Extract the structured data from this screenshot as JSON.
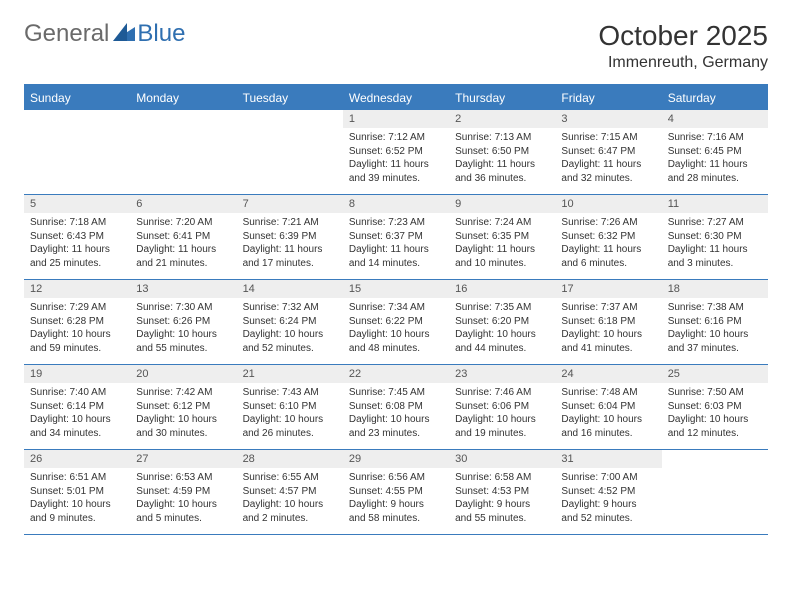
{
  "logo": {
    "general": "General",
    "blue": "Blue"
  },
  "title": "October 2025",
  "location": "Immenreuth, Germany",
  "colors": {
    "header_bg": "#3a7bbd",
    "header_text": "#ffffff",
    "daynum_bg": "#eeeeee",
    "border": "#3a7bbd",
    "logo_gray": "#6a6a6a",
    "logo_blue": "#2f6fb0"
  },
  "weekdays": [
    "Sunday",
    "Monday",
    "Tuesday",
    "Wednesday",
    "Thursday",
    "Friday",
    "Saturday"
  ],
  "weeks": [
    [
      {
        "empty": true
      },
      {
        "empty": true
      },
      {
        "empty": true
      },
      {
        "num": "1",
        "sunrise": "Sunrise: 7:12 AM",
        "sunset": "Sunset: 6:52 PM",
        "daylight": "Daylight: 11 hours and 39 minutes."
      },
      {
        "num": "2",
        "sunrise": "Sunrise: 7:13 AM",
        "sunset": "Sunset: 6:50 PM",
        "daylight": "Daylight: 11 hours and 36 minutes."
      },
      {
        "num": "3",
        "sunrise": "Sunrise: 7:15 AM",
        "sunset": "Sunset: 6:47 PM",
        "daylight": "Daylight: 11 hours and 32 minutes."
      },
      {
        "num": "4",
        "sunrise": "Sunrise: 7:16 AM",
        "sunset": "Sunset: 6:45 PM",
        "daylight": "Daylight: 11 hours and 28 minutes."
      }
    ],
    [
      {
        "num": "5",
        "sunrise": "Sunrise: 7:18 AM",
        "sunset": "Sunset: 6:43 PM",
        "daylight": "Daylight: 11 hours and 25 minutes."
      },
      {
        "num": "6",
        "sunrise": "Sunrise: 7:20 AM",
        "sunset": "Sunset: 6:41 PM",
        "daylight": "Daylight: 11 hours and 21 minutes."
      },
      {
        "num": "7",
        "sunrise": "Sunrise: 7:21 AM",
        "sunset": "Sunset: 6:39 PM",
        "daylight": "Daylight: 11 hours and 17 minutes."
      },
      {
        "num": "8",
        "sunrise": "Sunrise: 7:23 AM",
        "sunset": "Sunset: 6:37 PM",
        "daylight": "Daylight: 11 hours and 14 minutes."
      },
      {
        "num": "9",
        "sunrise": "Sunrise: 7:24 AM",
        "sunset": "Sunset: 6:35 PM",
        "daylight": "Daylight: 11 hours and 10 minutes."
      },
      {
        "num": "10",
        "sunrise": "Sunrise: 7:26 AM",
        "sunset": "Sunset: 6:32 PM",
        "daylight": "Daylight: 11 hours and 6 minutes."
      },
      {
        "num": "11",
        "sunrise": "Sunrise: 7:27 AM",
        "sunset": "Sunset: 6:30 PM",
        "daylight": "Daylight: 11 hours and 3 minutes."
      }
    ],
    [
      {
        "num": "12",
        "sunrise": "Sunrise: 7:29 AM",
        "sunset": "Sunset: 6:28 PM",
        "daylight": "Daylight: 10 hours and 59 minutes."
      },
      {
        "num": "13",
        "sunrise": "Sunrise: 7:30 AM",
        "sunset": "Sunset: 6:26 PM",
        "daylight": "Daylight: 10 hours and 55 minutes."
      },
      {
        "num": "14",
        "sunrise": "Sunrise: 7:32 AM",
        "sunset": "Sunset: 6:24 PM",
        "daylight": "Daylight: 10 hours and 52 minutes."
      },
      {
        "num": "15",
        "sunrise": "Sunrise: 7:34 AM",
        "sunset": "Sunset: 6:22 PM",
        "daylight": "Daylight: 10 hours and 48 minutes."
      },
      {
        "num": "16",
        "sunrise": "Sunrise: 7:35 AM",
        "sunset": "Sunset: 6:20 PM",
        "daylight": "Daylight: 10 hours and 44 minutes."
      },
      {
        "num": "17",
        "sunrise": "Sunrise: 7:37 AM",
        "sunset": "Sunset: 6:18 PM",
        "daylight": "Daylight: 10 hours and 41 minutes."
      },
      {
        "num": "18",
        "sunrise": "Sunrise: 7:38 AM",
        "sunset": "Sunset: 6:16 PM",
        "daylight": "Daylight: 10 hours and 37 minutes."
      }
    ],
    [
      {
        "num": "19",
        "sunrise": "Sunrise: 7:40 AM",
        "sunset": "Sunset: 6:14 PM",
        "daylight": "Daylight: 10 hours and 34 minutes."
      },
      {
        "num": "20",
        "sunrise": "Sunrise: 7:42 AM",
        "sunset": "Sunset: 6:12 PM",
        "daylight": "Daylight: 10 hours and 30 minutes."
      },
      {
        "num": "21",
        "sunrise": "Sunrise: 7:43 AM",
        "sunset": "Sunset: 6:10 PM",
        "daylight": "Daylight: 10 hours and 26 minutes."
      },
      {
        "num": "22",
        "sunrise": "Sunrise: 7:45 AM",
        "sunset": "Sunset: 6:08 PM",
        "daylight": "Daylight: 10 hours and 23 minutes."
      },
      {
        "num": "23",
        "sunrise": "Sunrise: 7:46 AM",
        "sunset": "Sunset: 6:06 PM",
        "daylight": "Daylight: 10 hours and 19 minutes."
      },
      {
        "num": "24",
        "sunrise": "Sunrise: 7:48 AM",
        "sunset": "Sunset: 6:04 PM",
        "daylight": "Daylight: 10 hours and 16 minutes."
      },
      {
        "num": "25",
        "sunrise": "Sunrise: 7:50 AM",
        "sunset": "Sunset: 6:03 PM",
        "daylight": "Daylight: 10 hours and 12 minutes."
      }
    ],
    [
      {
        "num": "26",
        "sunrise": "Sunrise: 6:51 AM",
        "sunset": "Sunset: 5:01 PM",
        "daylight": "Daylight: 10 hours and 9 minutes."
      },
      {
        "num": "27",
        "sunrise": "Sunrise: 6:53 AM",
        "sunset": "Sunset: 4:59 PM",
        "daylight": "Daylight: 10 hours and 5 minutes."
      },
      {
        "num": "28",
        "sunrise": "Sunrise: 6:55 AM",
        "sunset": "Sunset: 4:57 PM",
        "daylight": "Daylight: 10 hours and 2 minutes."
      },
      {
        "num": "29",
        "sunrise": "Sunrise: 6:56 AM",
        "sunset": "Sunset: 4:55 PM",
        "daylight": "Daylight: 9 hours and 58 minutes."
      },
      {
        "num": "30",
        "sunrise": "Sunrise: 6:58 AM",
        "sunset": "Sunset: 4:53 PM",
        "daylight": "Daylight: 9 hours and 55 minutes."
      },
      {
        "num": "31",
        "sunrise": "Sunrise: 7:00 AM",
        "sunset": "Sunset: 4:52 PM",
        "daylight": "Daylight: 9 hours and 52 minutes."
      },
      {
        "empty": true
      }
    ]
  ]
}
